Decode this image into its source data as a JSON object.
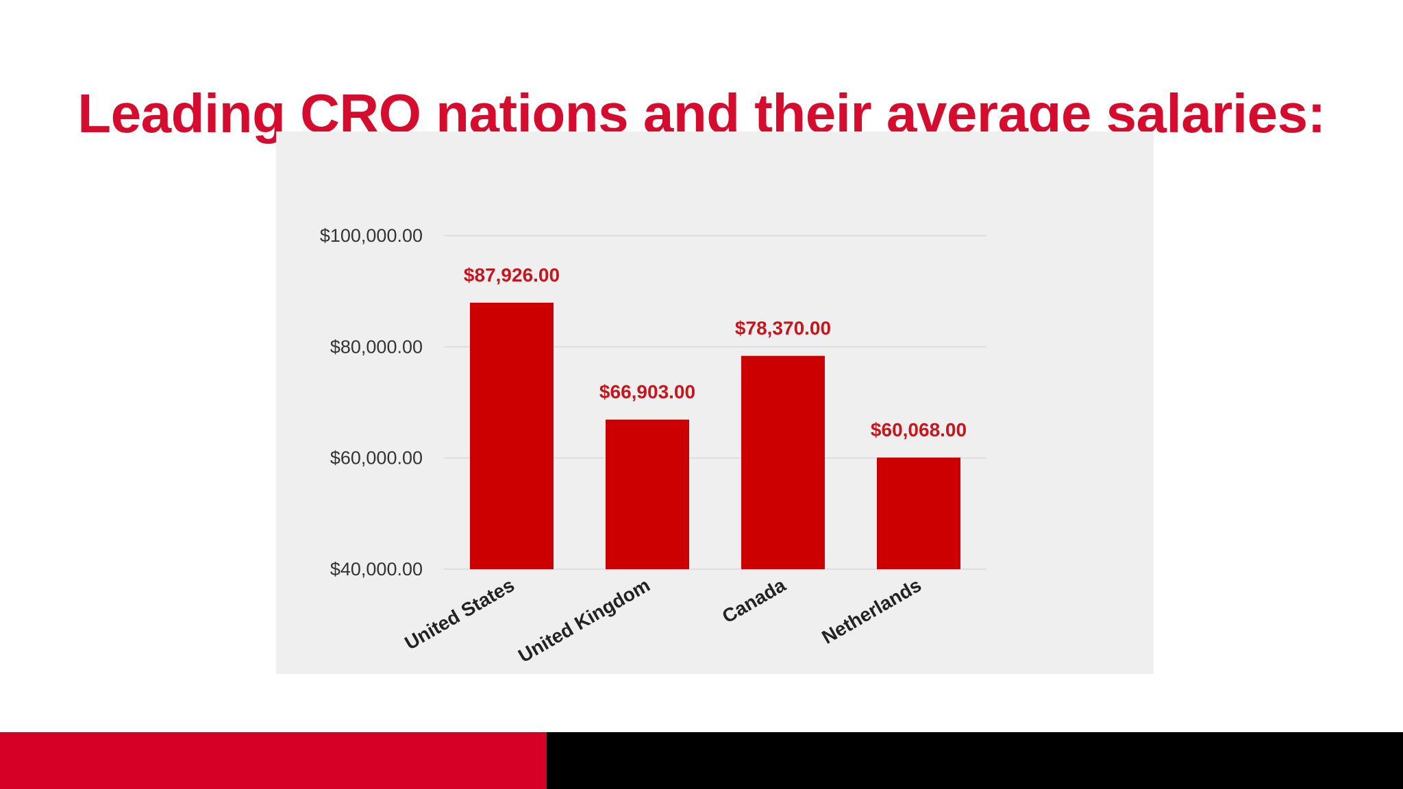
{
  "title": "Leading CRO nations and their average salaries:",
  "colors": {
    "title": "#d50c2d",
    "bar": "#cc0000",
    "data_label": "#c4161c",
    "axis_text": "#333333",
    "gridline": "#d8d8d8",
    "panel": "#efeff0",
    "footer_left": "#d50025",
    "footer_right": "#000000"
  },
  "chart_data": {
    "type": "bar",
    "categories": [
      "United States",
      "United Kingdom",
      "Canada",
      "Netherlands"
    ],
    "values": [
      87926,
      66903,
      78370,
      60068
    ],
    "data_labels": [
      "$87,926.00",
      "$66,903.00",
      "$78,370.00",
      "$60,068.00"
    ],
    "y_ticks": [
      40000,
      60000,
      80000,
      100000
    ],
    "y_tick_labels": [
      "$40,000.00",
      "$60,000.00",
      "$80,000.00",
      "$100,000.00"
    ],
    "ylim": [
      40000,
      100000
    ],
    "grid": true,
    "legend": "none"
  }
}
